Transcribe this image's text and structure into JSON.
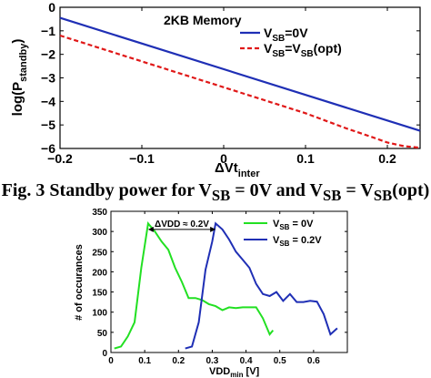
{
  "caption": {
    "prefix": "Fig. 3 Standby power for V",
    "sub1": "SB",
    "mid": " = 0V and V",
    "sub2": "SB",
    "mid2": " = V",
    "sub3": "SB",
    "suffix": "(opt)"
  },
  "colors": {
    "blue": "#1f2fb5",
    "red": "#e01818",
    "green": "#22e022"
  },
  "chart_data": [
    {
      "type": "line",
      "title": "2KB Memory",
      "xlabel": "ΔVt",
      "xlabel_sub": "inter",
      "ylabel": "log(P",
      "ylabel_sub": "standby",
      "ylabel_end": ")",
      "xlim": [
        -0.2,
        0.24
      ],
      "ylim": [
        -6,
        0
      ],
      "xticks": [
        -0.2,
        -0.1,
        0,
        0.1,
        0.2
      ],
      "xtick_labels": [
        "−0.2",
        "−0.1",
        "0",
        "0.1",
        "0.2"
      ],
      "yticks": [
        0,
        -1,
        -2,
        -3,
        -4,
        -5,
        -6
      ],
      "ytick_labels": [
        "0",
        "−1",
        "−2",
        "−3",
        "−4",
        "−5",
        "−6"
      ],
      "legend": [
        {
          "main": "V",
          "sub": "SB",
          "rest": "=0V"
        },
        {
          "main": "V",
          "sub": "SB",
          "rest": "=V",
          "sub2": "SB",
          "rest2": "(opt)"
        }
      ],
      "legend_position": "top-right",
      "series": [
        {
          "name": "VSB=0V",
          "color": "#1f2fb5",
          "style": "solid",
          "points": [
            [
              -0.2,
              -0.45
            ],
            [
              0.24,
              -5.25
            ]
          ]
        },
        {
          "name": "VSB=VSB(opt)",
          "color": "#e01818",
          "style": "dashed",
          "points": [
            [
              -0.2,
              -1.2
            ],
            [
              -0.1,
              -2.3
            ],
            [
              0,
              -3.4
            ],
            [
              0.1,
              -4.5
            ],
            [
              0.15,
              -5.15
            ],
            [
              0.18,
              -5.5
            ],
            [
              0.2,
              -5.75
            ],
            [
              0.22,
              -5.9
            ],
            [
              0.24,
              -5.97
            ]
          ]
        }
      ]
    },
    {
      "type": "line",
      "xlabel": "VDD",
      "xlabel_sub": "min",
      "xlabel_end": " [V]",
      "ylabel": "# of occurances",
      "xlim": [
        0,
        0.7
      ],
      "ylim": [
        0,
        350
      ],
      "xticks": [
        0,
        0.1,
        0.2,
        0.3,
        0.4,
        0.5,
        0.6
      ],
      "xtick_labels": [
        "0",
        "0.1",
        "0.2",
        "0.3",
        "0.4",
        "0.5",
        "0.6"
      ],
      "yticks": [
        0,
        50,
        100,
        150,
        200,
        250,
        300,
        350
      ],
      "ytick_labels": [
        "0",
        "50",
        "100",
        "150",
        "200",
        "250",
        "300",
        "350"
      ],
      "annotation": "ΔVDD ≈ 0.2V",
      "legend": [
        {
          "main": "V",
          "sub": "SB",
          "rest": " = 0V"
        },
        {
          "main": "V",
          "sub": "SB",
          "rest": " = 0.2V"
        }
      ],
      "legend_position": "top-right",
      "series": [
        {
          "name": "VSB = 0V",
          "color": "#22e022",
          "points": [
            [
              0.01,
              10
            ],
            [
              0.03,
              15
            ],
            [
              0.05,
              40
            ],
            [
              0.07,
              75
            ],
            [
              0.09,
              210
            ],
            [
              0.11,
              320
            ],
            [
              0.13,
              300
            ],
            [
              0.15,
              275
            ],
            [
              0.17,
              255
            ],
            [
              0.19,
              210
            ],
            [
              0.21,
              175
            ],
            [
              0.23,
              135
            ],
            [
              0.25,
              135
            ],
            [
              0.27,
              130
            ],
            [
              0.29,
              120
            ],
            [
              0.31,
              115
            ],
            [
              0.33,
              105
            ],
            [
              0.35,
              112
            ],
            [
              0.37,
              110
            ],
            [
              0.39,
              112
            ],
            [
              0.41,
              112
            ],
            [
              0.43,
              112
            ],
            [
              0.45,
              85
            ],
            [
              0.47,
              45
            ],
            [
              0.48,
              55
            ]
          ]
        },
        {
          "name": "VSB = 0.2V",
          "color": "#1f2fb5",
          "points": [
            [
              0.22,
              10
            ],
            [
              0.24,
              15
            ],
            [
              0.26,
              75
            ],
            [
              0.28,
              205
            ],
            [
              0.3,
              275
            ],
            [
              0.31,
              320
            ],
            [
              0.33,
              305
            ],
            [
              0.35,
              280
            ],
            [
              0.37,
              250
            ],
            [
              0.39,
              230
            ],
            [
              0.41,
              210
            ],
            [
              0.43,
              170
            ],
            [
              0.45,
              145
            ],
            [
              0.47,
              140
            ],
            [
              0.49,
              150
            ],
            [
              0.51,
              128
            ],
            [
              0.53,
              145
            ],
            [
              0.55,
              125
            ],
            [
              0.57,
              125
            ],
            [
              0.59,
              128
            ],
            [
              0.61,
              126
            ],
            [
              0.63,
              95
            ],
            [
              0.65,
              45
            ],
            [
              0.67,
              60
            ]
          ]
        }
      ]
    }
  ]
}
